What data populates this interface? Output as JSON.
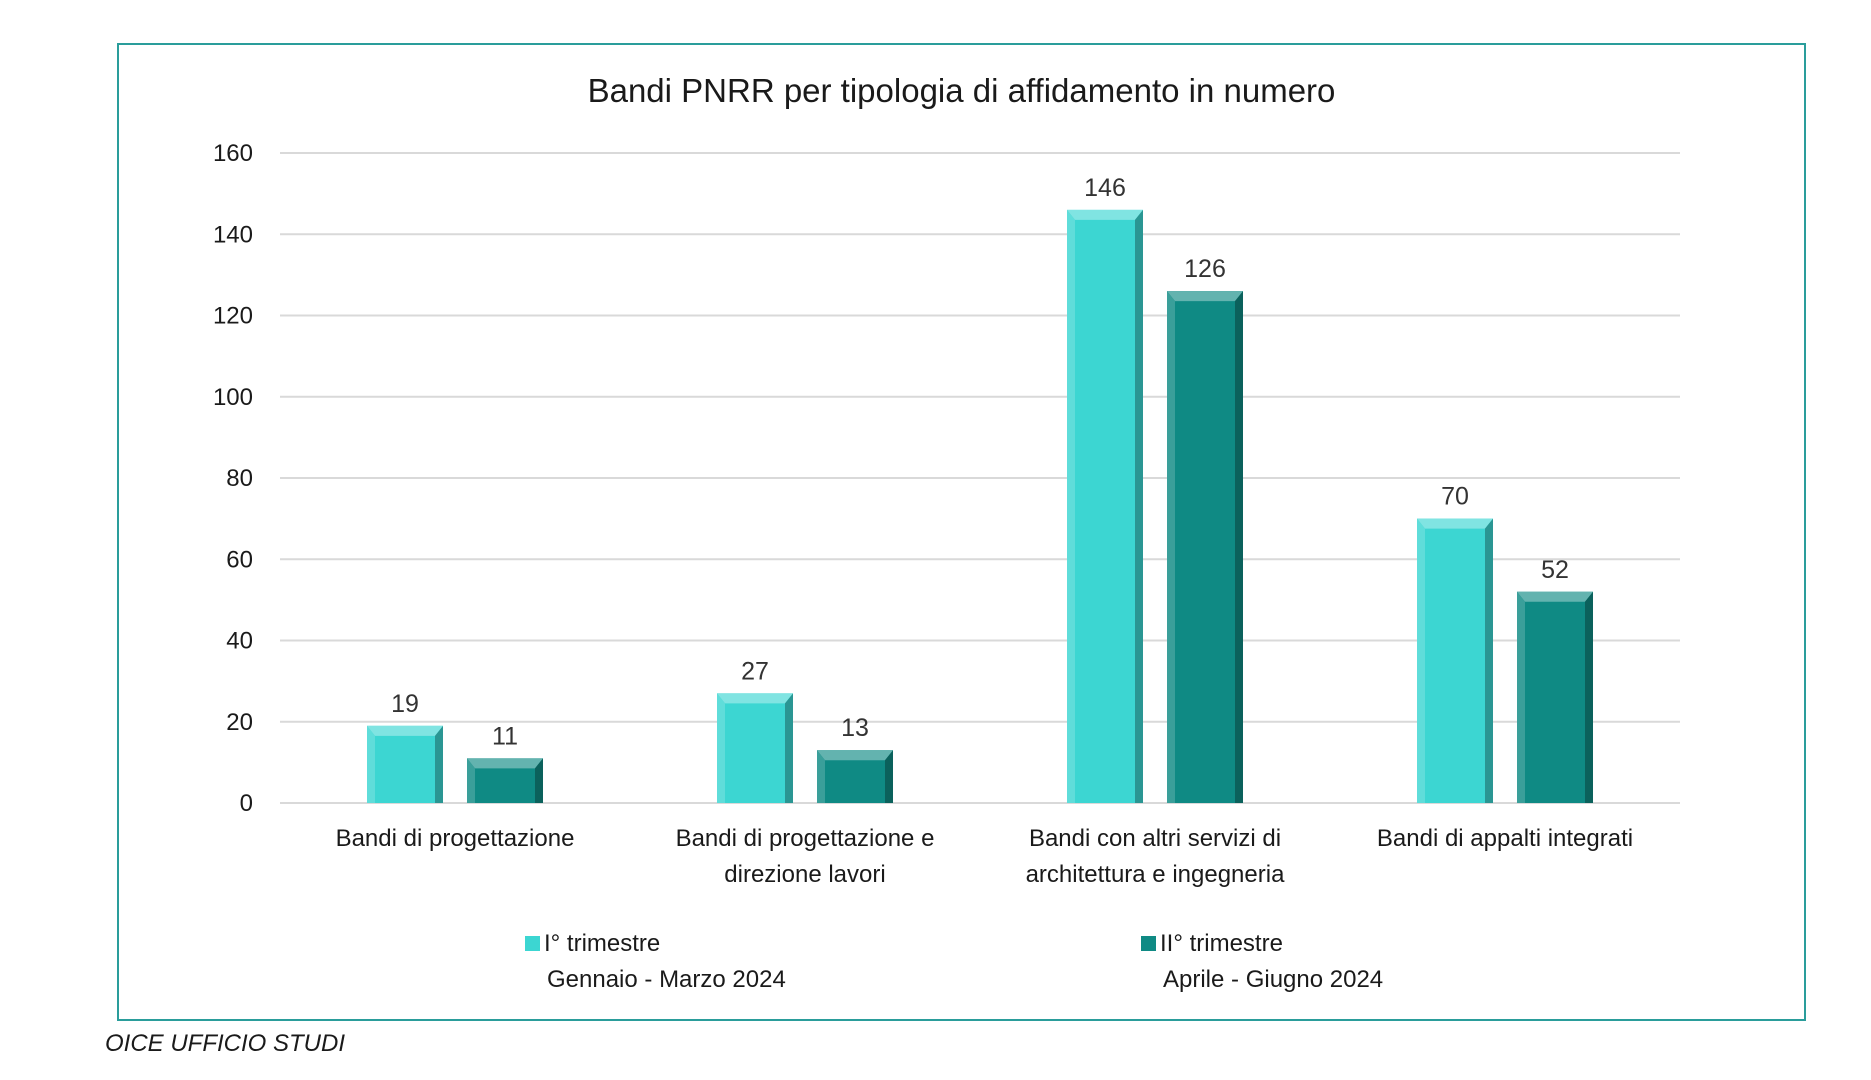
{
  "chart_data": {
    "type": "bar",
    "title": "Bandi PNRR per tipologia di affidamento in numero",
    "categories": [
      [
        "Bandi di progettazione"
      ],
      [
        "Bandi di progettazione e",
        "direzione lavori"
      ],
      [
        "Bandi con altri servizi di",
        "architettura e ingegneria"
      ],
      [
        "Bandi di appalti integrati"
      ]
    ],
    "series": [
      {
        "name": "I° trimestre",
        "period": "Gennaio  - Marzo 2024",
        "color": "#3cd6d2",
        "values": [
          19,
          27,
          146,
          70
        ]
      },
      {
        "name": "II° trimestre",
        "period": "Aprile  - Giugno 2024",
        "color": "#0f8a84",
        "values": [
          11,
          13,
          126,
          52
        ]
      }
    ],
    "ylim": [
      0,
      160
    ],
    "yticks": [
      0,
      20,
      40,
      60,
      80,
      100,
      120,
      140,
      160
    ],
    "grid": true,
    "legend": "bottom",
    "data_labels": true,
    "xlabel": "",
    "ylabel": ""
  },
  "source": "OICE UFFICIO STUDI"
}
